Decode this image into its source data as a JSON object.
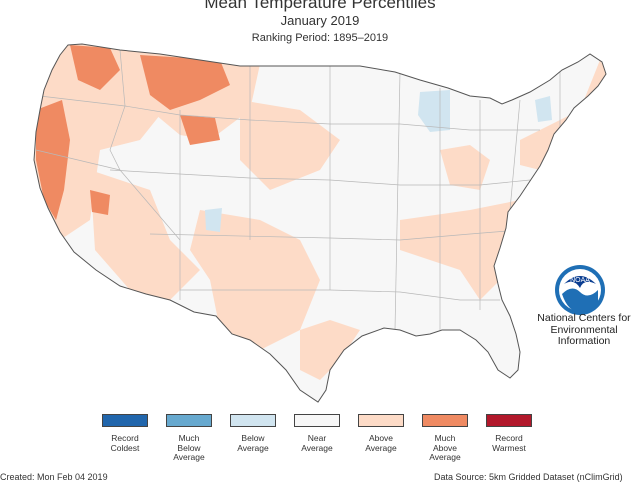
{
  "header": {
    "title": "Mean Temperature Percentiles",
    "subtitle": "January 2019",
    "ranking": "Ranking Period: 1895–2019"
  },
  "logo": {
    "badge_text": "NOAA",
    "org_lines": [
      "National Centers for",
      "Environmental",
      "Information"
    ]
  },
  "legend": [
    {
      "label": "Record\nColdest",
      "color": "#2166ac"
    },
    {
      "label": "Much\nBelow\nAverage",
      "color": "#67a9cf"
    },
    {
      "label": "Below\nAverage",
      "color": "#d1e5f0"
    },
    {
      "label": "Near\nAverage",
      "color": "#f7f7f7"
    },
    {
      "label": "Above\nAverage",
      "color": "#fddbc7"
    },
    {
      "label": "Much\nAbove\nAverage",
      "color": "#ef8a62"
    },
    {
      "label": "Record\nWarmest",
      "color": "#b2182b"
    }
  ],
  "footer": {
    "created": "Created: Mon Feb 04 2019",
    "source": "Data Source: 5km Gridded Dataset (nClimGrid)"
  }
}
